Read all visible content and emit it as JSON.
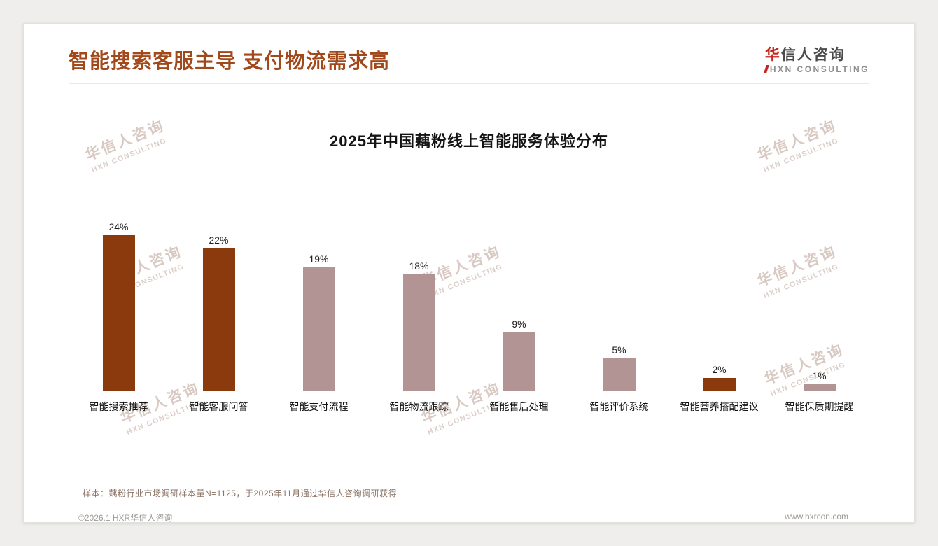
{
  "header": {
    "title": "智能搜索客服主导 支付物流需求高"
  },
  "logo": {
    "cn_first": "华",
    "cn_rest": "信人咨询",
    "en": "HXN CONSULTING"
  },
  "watermark": {
    "cn": "华信人咨询",
    "en": "HXN CONSULTING"
  },
  "chart_data": {
    "type": "bar",
    "title": "2025年中国藕粉线上智能服务体验分布",
    "categories": [
      "智能搜索推荐",
      "智能客服问答",
      "智能支付流程",
      "智能物流跟踪",
      "智能售后处理",
      "智能评价系统",
      "智能营养搭配建议",
      "智能保质期提醒"
    ],
    "values": [
      24,
      22,
      19,
      18,
      9,
      5,
      2,
      1
    ],
    "unit": "%",
    "bar_styles": [
      "dark",
      "dark",
      "light",
      "light",
      "light",
      "light",
      "dark",
      "light"
    ],
    "colors": {
      "dark": "#8B3A0E",
      "light": "#B29495"
    },
    "xlabel": "",
    "ylabel": "",
    "ylim": [
      0,
      26
    ],
    "grid": false,
    "legend": false,
    "value_labels": true
  },
  "footnote": "样本：藕粉行业市场调研样本量N=1125，于2025年11月通过华信人咨询调研获得",
  "footer": {
    "left": "©2026.1 HXR华信人咨询",
    "right": "www.hxrcon.com"
  },
  "accent_colors": {
    "title": "#A2491B",
    "logo_red": "#C3261C",
    "note": "#8A7265"
  }
}
